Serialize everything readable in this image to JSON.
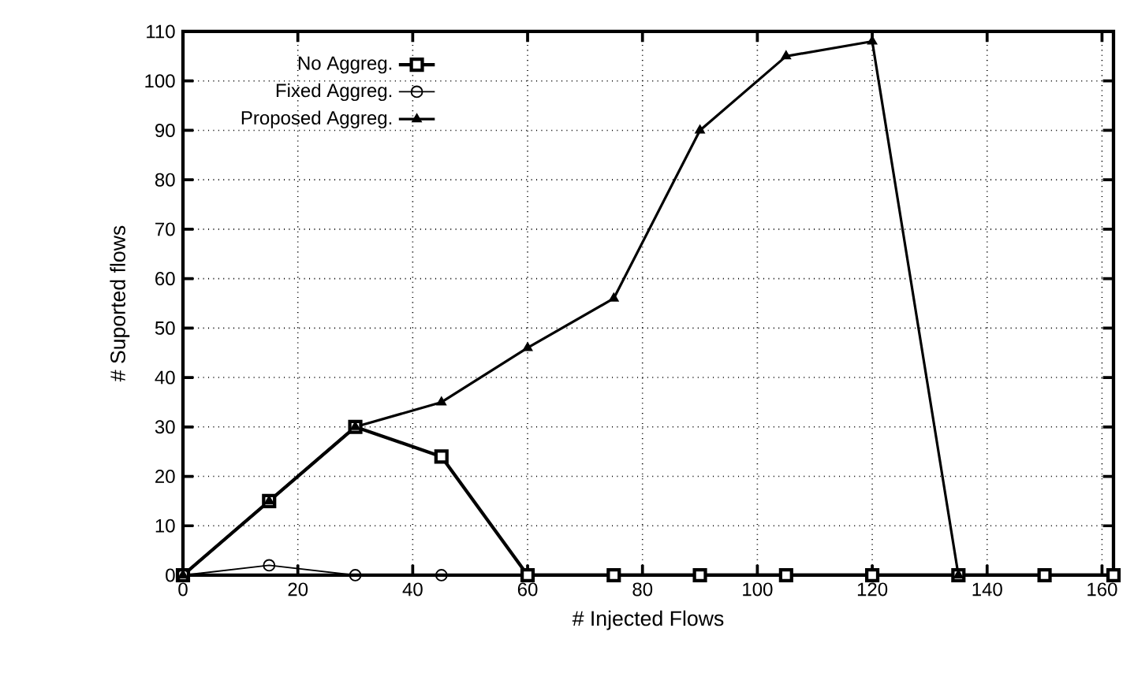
{
  "chart_data": {
    "type": "line",
    "xlabel": "# Injected Flows",
    "ylabel": "# Suported flows",
    "x": [
      0,
      15,
      30,
      45,
      60,
      75,
      90,
      105,
      120,
      135,
      150,
      162
    ],
    "series": [
      {
        "name": "No Aggreg.",
        "color": "#000000",
        "marker": "square",
        "values": [
          0,
          15,
          30,
          24,
          0,
          0,
          0,
          0,
          0,
          0,
          0,
          0
        ]
      },
      {
        "name": "Fixed Aggreg.",
        "color": "#000000",
        "marker": "circle",
        "values": [
          0,
          2,
          0,
          0,
          null,
          null,
          null,
          null,
          null,
          null,
          null,
          null
        ]
      },
      {
        "name": "Proposed Aggreg.",
        "color": "#000000",
        "marker": "triangle",
        "values": [
          0,
          15,
          30,
          35,
          46,
          56,
          90,
          105,
          108,
          0,
          null,
          null
        ]
      }
    ],
    "xlim": [
      0,
      162
    ],
    "xticks": [
      0,
      20,
      40,
      60,
      80,
      100,
      120,
      140,
      160
    ],
    "ylim": [
      0,
      110
    ],
    "yticks": [
      0,
      10,
      20,
      30,
      40,
      50,
      60,
      70,
      80,
      90,
      100,
      110
    ],
    "grid": true,
    "legend": "top left",
    "line_style": "solid"
  }
}
